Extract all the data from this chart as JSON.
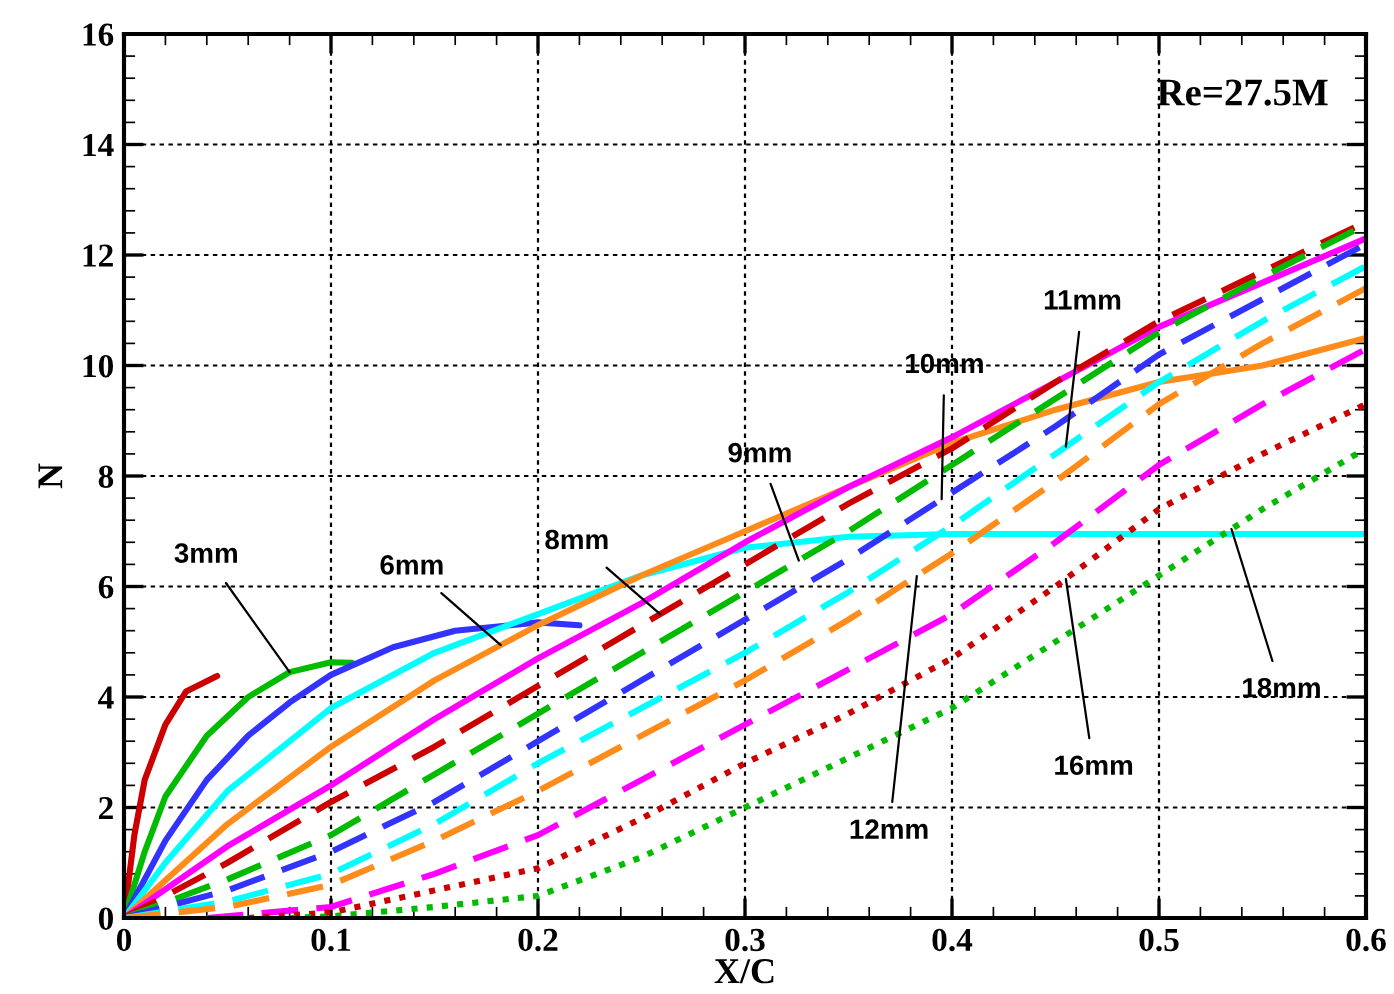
{
  "chart_data": {
    "type": "line",
    "xlabel": "X/C",
    "ylabel": "N",
    "xlim": [
      0,
      0.6
    ],
    "ylim": [
      0,
      16
    ],
    "xticks": [
      0,
      0.1,
      0.2,
      0.3,
      0.4,
      0.5,
      0.6
    ],
    "yticks": [
      0,
      2,
      4,
      6,
      8,
      10,
      12,
      14,
      16
    ],
    "grid": true,
    "legend": false,
    "marker": "none",
    "series": [
      {
        "color": "#cc0000",
        "line_style": "solid",
        "x": [
          0,
          0.005,
          0.01,
          0.02,
          0.03,
          0.045
        ],
        "values": [
          0,
          1.5,
          2.5,
          3.5,
          4.1,
          4.38
        ]
      },
      {
        "color": "#00bb00",
        "line_style": "solid",
        "x": [
          0,
          0.01,
          0.02,
          0.04,
          0.06,
          0.08,
          0.1,
          0.11
        ],
        "values": [
          0,
          1.2,
          2.2,
          3.3,
          4.0,
          4.45,
          4.63,
          4.62
        ]
      },
      {
        "color": "#3333ff",
        "line_style": "solid",
        "x": [
          0,
          0.02,
          0.04,
          0.06,
          0.08,
          0.1,
          0.13,
          0.16,
          0.2,
          0.22
        ],
        "values": [
          0,
          1.4,
          2.5,
          3.3,
          3.9,
          4.4,
          4.9,
          5.2,
          5.35,
          5.3
        ]
      },
      {
        "color": "#00ffff",
        "line_style": "solid",
        "x": [
          0,
          0.02,
          0.05,
          0.1,
          0.15,
          0.2,
          0.25,
          0.3,
          0.35,
          0.4,
          0.5,
          0.6
        ],
        "values": [
          0,
          1.0,
          2.3,
          3.8,
          4.8,
          5.5,
          6.2,
          6.7,
          6.9,
          6.95,
          6.95,
          6.95
        ]
      },
      {
        "color": "#ff8c1a",
        "line_style": "solid",
        "x": [
          0,
          0.05,
          0.1,
          0.15,
          0.2,
          0.25,
          0.3,
          0.35,
          0.4,
          0.45,
          0.5,
          0.55,
          0.6
        ],
        "values": [
          0,
          1.7,
          3.1,
          4.3,
          5.3,
          6.2,
          7.0,
          7.8,
          8.6,
          9.2,
          9.7,
          10.0,
          10.5
        ]
      },
      {
        "color": "#ff00ff",
        "line_style": "solid",
        "x": [
          0,
          0.05,
          0.1,
          0.15,
          0.2,
          0.25,
          0.3,
          0.35,
          0.4,
          0.45,
          0.5,
          0.55,
          0.6
        ],
        "values": [
          0,
          1.3,
          2.4,
          3.6,
          4.7,
          5.7,
          6.8,
          7.8,
          8.7,
          9.7,
          10.7,
          11.5,
          12.3
        ]
      },
      {
        "color": "#cc0000",
        "line_style": "dashed",
        "x": [
          0,
          0.05,
          0.1,
          0.15,
          0.2,
          0.25,
          0.3,
          0.35,
          0.4,
          0.45,
          0.5,
          0.55,
          0.6
        ],
        "values": [
          0,
          1.0,
          2.1,
          3.1,
          4.2,
          5.3,
          6.4,
          7.5,
          8.5,
          9.7,
          10.8,
          11.7,
          12.6
        ]
      },
      {
        "color": "#00bb00",
        "line_style": "dashed",
        "x": [
          0,
          0.05,
          0.1,
          0.15,
          0.2,
          0.25,
          0.3,
          0.35,
          0.4,
          0.45,
          0.5,
          0.55,
          0.6
        ],
        "values": [
          0,
          0.7,
          1.5,
          2.6,
          3.7,
          4.8,
          5.9,
          7.0,
          8.2,
          9.4,
          10.6,
          11.6,
          12.55
        ]
      },
      {
        "color": "#3333ff",
        "line_style": "dashed",
        "x": [
          0,
          0.05,
          0.1,
          0.15,
          0.2,
          0.25,
          0.3,
          0.35,
          0.4,
          0.45,
          0.5,
          0.55,
          0.6
        ],
        "values": [
          0,
          0.5,
          1.2,
          2.1,
          3.2,
          4.3,
          5.4,
          6.5,
          7.7,
          8.9,
          10.2,
          11.2,
          12.2
        ]
      },
      {
        "color": "#00ffff",
        "line_style": "dashed",
        "x": [
          0,
          0.05,
          0.1,
          0.15,
          0.2,
          0.25,
          0.3,
          0.35,
          0.4,
          0.45,
          0.5,
          0.55,
          0.6
        ],
        "values": [
          0,
          0.3,
          0.8,
          1.7,
          2.8,
          3.8,
          4.8,
          5.9,
          7.1,
          8.4,
          9.7,
          10.8,
          11.8
        ]
      },
      {
        "color": "#ff8c1a",
        "line_style": "dashed",
        "x": [
          0,
          0.05,
          0.1,
          0.15,
          0.2,
          0.25,
          0.3,
          0.35,
          0.4,
          0.45,
          0.5,
          0.55,
          0.6
        ],
        "values": [
          0,
          0.2,
          0.6,
          1.4,
          2.3,
          3.3,
          4.3,
          5.4,
          6.6,
          7.9,
          9.3,
          10.4,
          11.4
        ]
      },
      {
        "color": "#ff00ff",
        "line_style": "dashed",
        "x": [
          0.04,
          0.1,
          0.15,
          0.2,
          0.25,
          0.3,
          0.35,
          0.4,
          0.45,
          0.5,
          0.55,
          0.6
        ],
        "values": [
          0,
          0.2,
          0.8,
          1.5,
          2.5,
          3.5,
          4.5,
          5.5,
          6.8,
          8.2,
          9.3,
          10.3
        ]
      },
      {
        "color": "#cc0000",
        "line_style": "dotted",
        "x": [
          0.06,
          0.1,
          0.15,
          0.2,
          0.25,
          0.3,
          0.35,
          0.4,
          0.45,
          0.5,
          0.55,
          0.6
        ],
        "values": [
          0,
          0.1,
          0.5,
          0.9,
          1.8,
          2.8,
          3.7,
          4.7,
          6.0,
          7.4,
          8.4,
          9.3
        ]
      },
      {
        "color": "#00bb00",
        "line_style": "dotted",
        "x": [
          0.08,
          0.1,
          0.15,
          0.2,
          0.25,
          0.3,
          0.35,
          0.4,
          0.45,
          0.5,
          0.55,
          0.6
        ],
        "values": [
          0,
          0.03,
          0.2,
          0.4,
          1.1,
          2.0,
          2.9,
          3.8,
          5.0,
          6.2,
          7.4,
          8.5
        ]
      }
    ],
    "annotations": [
      {
        "text": "3mm",
        "x": 0.08,
        "y": 4.45
      },
      {
        "text": "6mm",
        "x": 0.182,
        "y": 4.94
      },
      {
        "text": "8mm",
        "x": 0.259,
        "y": 5.5
      },
      {
        "text": "9mm",
        "x": 0.326,
        "y": 6.47
      },
      {
        "text": "10mm",
        "x": 0.395,
        "y": 7.58
      },
      {
        "text": "11mm",
        "x": 0.455,
        "y": 8.53
      },
      {
        "text": "12mm",
        "x": 0.383,
        "y": 6.19
      },
      {
        "text": "16mm",
        "x": 0.455,
        "y": 6.14
      },
      {
        "text": "18mm",
        "x": 0.535,
        "y": 7.04
      },
      "Re=27.5M"
    ]
  }
}
